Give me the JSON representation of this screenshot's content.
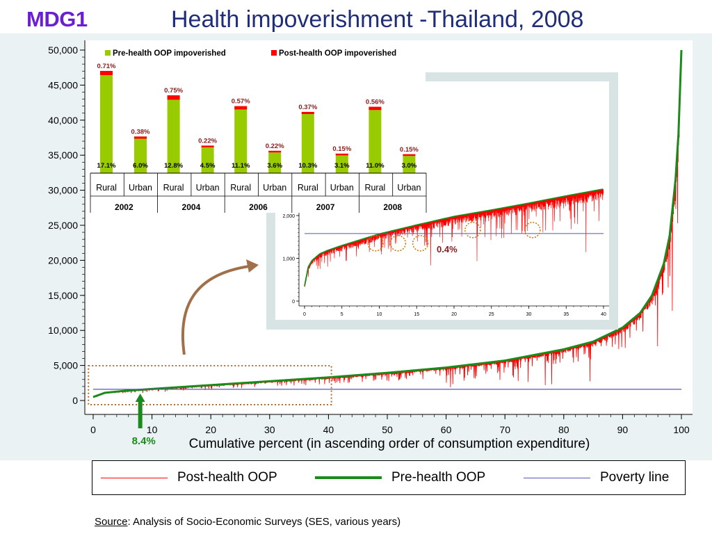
{
  "logo": "MDG1",
  "title": "Health impoverishment -Thailand, 2008",
  "colors": {
    "post": "#ff0000",
    "pre": "#1a8a1a",
    "poverty": "#5555bb",
    "bar_green": "#99cc00",
    "bar_red": "#ff0000",
    "arrow_brown": "#a0704a",
    "pct_green": "#1a8a1a",
    "callout": "#8b1a1a"
  },
  "chart_data": [
    {
      "type": "line",
      "title": "",
      "xlabel": "Cumulative percent (in ascending order of consumption expenditure)",
      "ylabel": "",
      "xlim": [
        0,
        100
      ],
      "ylim": [
        0,
        50000
      ],
      "x_ticks": [
        0,
        10,
        20,
        30,
        40,
        50,
        60,
        70,
        80,
        90,
        100
      ],
      "y_ticks": [
        0,
        5000,
        10000,
        15000,
        20000,
        25000,
        30000,
        35000,
        40000,
        45000,
        50000
      ],
      "y_tick_labels": [
        "0",
        "5,000",
        "10,000",
        "15,000",
        "20,000",
        "25,000",
        "30,000",
        "35,000",
        "40,000",
        "45,000",
        "50,000"
      ],
      "x_tick_labels": [
        "0",
        "10",
        "20",
        "30",
        "40",
        "50",
        "60",
        "70",
        "80",
        "90",
        "100"
      ],
      "series": [
        {
          "name": "Post-health OOP",
          "color": "#ff0000"
        },
        {
          "name": "Pre-health OOP",
          "color": "#1a8a1a",
          "x": [
            0,
            2,
            5,
            10,
            20,
            30,
            40,
            50,
            60,
            70,
            80,
            85,
            90,
            93,
            95,
            97,
            98,
            99,
            99.5,
            100
          ],
          "y": [
            500,
            1100,
            1350,
            1650,
            2200,
            2750,
            3300,
            3950,
            4700,
            5700,
            7300,
            8400,
            10400,
            12500,
            15000,
            19500,
            23500,
            31500,
            38000,
            50000
          ]
        },
        {
          "name": "Poverty line",
          "color": "#5555bb",
          "x": [
            0,
            100
          ],
          "y": [
            1600,
            1600
          ]
        }
      ],
      "annotations": [
        {
          "text": "8.4%",
          "x": 8
        }
      ],
      "legend": {
        "placement": "bottom",
        "entries": [
          "Post-health OOP",
          "Pre-health OOP",
          "Poverty line"
        ]
      }
    },
    {
      "type": "bar",
      "title": "",
      "legend": {
        "placement": "top",
        "entries": [
          "Pre-health OOP impoverished",
          "Post-health OOP impoverished"
        ]
      },
      "groups": [
        {
          "year": "2002",
          "bars": [
            {
              "area": "Rural",
              "pre_pct": "17.1%",
              "post_pct": "0.71%",
              "pre": 17.1,
              "post": 0.71
            },
            {
              "area": "Urban",
              "pre_pct": "6.0%",
              "post_pct": "0.38%",
              "pre": 6.0,
              "post": 0.38
            }
          ]
        },
        {
          "year": "2004",
          "bars": [
            {
              "area": "Rural",
              "pre_pct": "12.8%",
              "post_pct": "0.75%",
              "pre": 12.8,
              "post": 0.75
            },
            {
              "area": "Urban",
              "pre_pct": "4.5%",
              "post_pct": "0.22%",
              "pre": 4.5,
              "post": 0.22
            }
          ]
        },
        {
          "year": "2006",
          "bars": [
            {
              "area": "Rural",
              "pre_pct": "11.1%",
              "post_pct": "0.57%",
              "pre": 11.1,
              "post": 0.57
            },
            {
              "area": "Urban",
              "pre_pct": "3.6%",
              "post_pct": "0.22%",
              "pre": 3.6,
              "post": 0.22
            }
          ]
        },
        {
          "year": "2007",
          "bars": [
            {
              "area": "Rural",
              "pre_pct": "10.3%",
              "post_pct": "0.37%",
              "pre": 10.3,
              "post": 0.37
            },
            {
              "area": "Urban",
              "pre_pct": "3.1%",
              "post_pct": "0.15%",
              "pre": 3.1,
              "post": 0.15
            }
          ]
        },
        {
          "year": "2008",
          "bars": [
            {
              "area": "Rural",
              "pre_pct": "11.0%",
              "post_pct": "0.56%",
              "pre": 11.0,
              "post": 0.56
            },
            {
              "area": "Urban",
              "pre_pct": "3.0%",
              "post_pct": "0.15%",
              "pre": 3.0,
              "post": 0.15
            }
          ]
        }
      ]
    },
    {
      "type": "line",
      "title": "",
      "xlim": [
        0,
        40
      ],
      "ylim": [
        0,
        2000
      ],
      "x_ticks": [
        0,
        5,
        10,
        15,
        20,
        25,
        30,
        35,
        40
      ],
      "x_tick_labels": [
        "0",
        "5",
        "10",
        "15",
        "20",
        "25",
        "30",
        "35",
        "40"
      ],
      "y_ticks": [
        0,
        1000,
        2000
      ],
      "y_tick_labels": [
        "0",
        "1,000",
        "2,000"
      ],
      "series": [
        {
          "name": "Pre-health OOP",
          "x": [
            0,
            0.5,
            1,
            2,
            3,
            5,
            10,
            15,
            20,
            25,
            30,
            35,
            40
          ],
          "y": [
            350,
            800,
            950,
            1100,
            1180,
            1300,
            1570,
            1780,
            1980,
            2130,
            2290,
            2460,
            2620
          ]
        },
        {
          "name": "Poverty line",
          "x": [
            0,
            40
          ],
          "y": [
            1580,
            1580
          ]
        }
      ],
      "circled_x": [
        9.5,
        12.5,
        15.5,
        22.5,
        30.5
      ],
      "annotations": [
        {
          "text": "0.4%"
        }
      ]
    }
  ],
  "source": {
    "label": "Source",
    "text": ": Analysis of Socio-Economic Surveys (SES, various years)"
  }
}
